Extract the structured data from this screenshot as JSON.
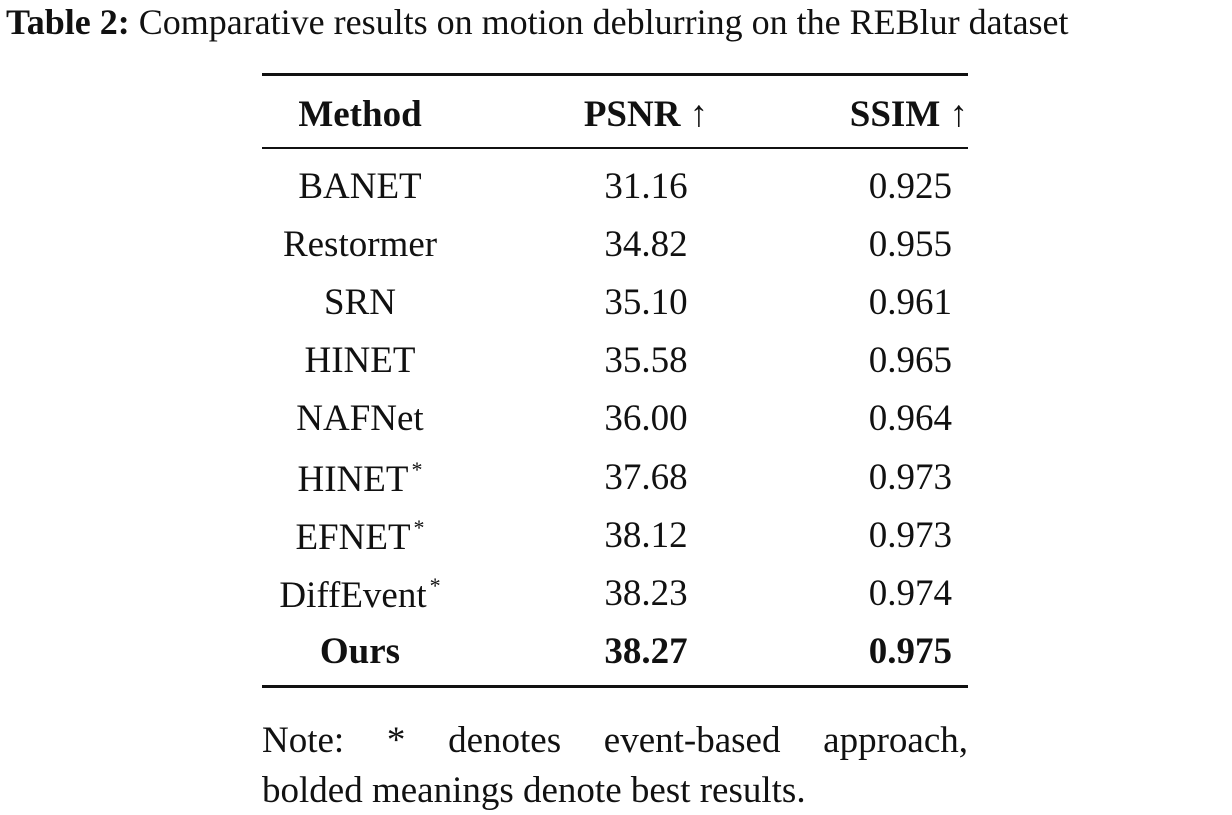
{
  "caption": {
    "label": "Table 2:",
    "text": "Comparative results on motion deblurring on the REBlur dataset"
  },
  "table": {
    "header": [
      "Method",
      "PSNR ↑",
      "SSIM ↑"
    ],
    "rows": [
      {
        "method": "BANET",
        "psnr": "31.16",
        "ssim": "0.925"
      },
      {
        "method": "Restormer",
        "psnr": "34.82",
        "ssim": "0.955"
      },
      {
        "method": "SRN",
        "psnr": "35.10",
        "ssim": "0.961"
      },
      {
        "method": "HINET",
        "psnr": "35.58",
        "ssim": "0.965"
      },
      {
        "method": "NAFNet",
        "psnr": "36.00",
        "ssim": "0.964"
      },
      {
        "method": "HINET",
        "marker": "*",
        "psnr": "37.68",
        "ssim": "0.973"
      },
      {
        "method": "EFNET",
        "marker": "*",
        "psnr": "38.12",
        "ssim": "0.973"
      },
      {
        "method": "DiffEvent",
        "marker": "*",
        "psnr": "38.23",
        "ssim": "0.974"
      },
      {
        "method": "Ours",
        "psnr": "38.27",
        "ssim": "0.975",
        "bold": true
      }
    ]
  },
  "note": [
    "Note: * denotes event-based approach,",
    "bolded meanings denote best results."
  ]
}
